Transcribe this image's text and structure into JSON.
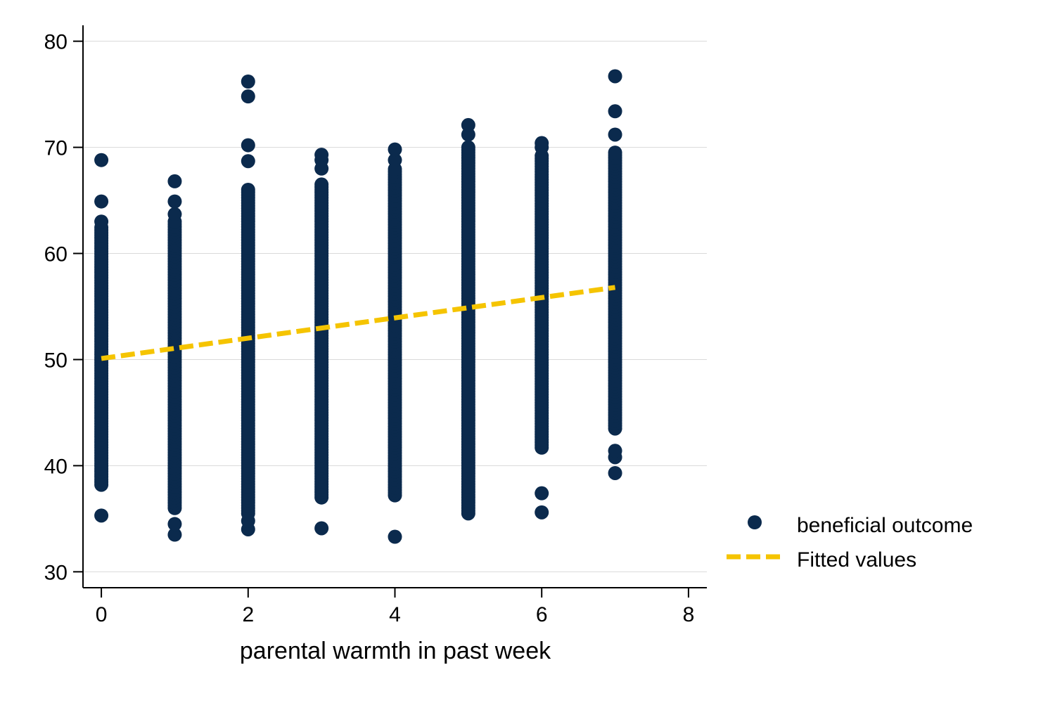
{
  "chart_data": {
    "type": "scatter",
    "title": "",
    "xlabel": "parental warmth in past week",
    "ylabel": "",
    "xlim": [
      -0.25,
      8.25
    ],
    "ylim": [
      28.5,
      81.5
    ],
    "xticks": [
      0,
      2,
      4,
      6,
      8
    ],
    "yticks": [
      30,
      40,
      50,
      60,
      70,
      80
    ],
    "grid": "horizontal",
    "legend_position": "right",
    "colors": {
      "points": "#0b2a4d",
      "fit": "#f5c400",
      "grid": "#d9d9d9",
      "axis": "#000000"
    },
    "series": [
      {
        "name": "beneficial outcome",
        "kind": "scatter",
        "columns": [
          {
            "x": 0,
            "min": 38.2,
            "max": 62.5,
            "outliers": [
              35.3,
              63.0,
              64.9,
              68.8
            ]
          },
          {
            "x": 1,
            "min": 36.0,
            "max": 63.0,
            "outliers": [
              33.5,
              34.5,
              63.7,
              64.9,
              66.8
            ]
          },
          {
            "x": 2,
            "min": 35.5,
            "max": 66.0,
            "outliers": [
              34.0,
              34.8,
              68.7,
              70.2,
              74.8,
              76.2
            ]
          },
          {
            "x": 3,
            "min": 37.0,
            "max": 66.5,
            "outliers": [
              34.1,
              68.0,
              68.8,
              69.3
            ]
          },
          {
            "x": 4,
            "min": 37.2,
            "max": 68.0,
            "outliers": [
              33.3,
              68.8,
              69.8
            ]
          },
          {
            "x": 5,
            "min": 35.5,
            "max": 70.0,
            "outliers": [
              71.2,
              72.1
            ]
          },
          {
            "x": 6,
            "min": 41.7,
            "max": 69.3,
            "outliers": [
              35.6,
              37.4,
              70.0,
              70.4
            ]
          },
          {
            "x": 7,
            "min": 43.5,
            "max": 69.5,
            "outliers": [
              39.3,
              40.8,
              41.4,
              71.2,
              73.4,
              76.7
            ]
          }
        ]
      },
      {
        "name": "Fitted values",
        "kind": "line",
        "style": "dashed",
        "x": [
          0,
          7
        ],
        "y": [
          50.1,
          56.8
        ]
      }
    ]
  }
}
